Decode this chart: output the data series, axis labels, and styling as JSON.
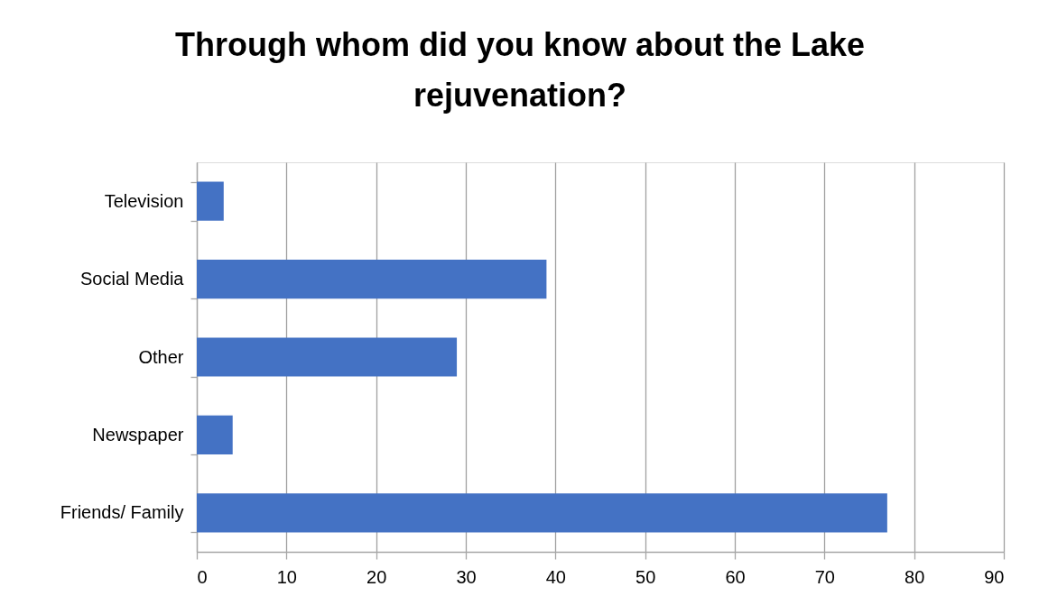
{
  "chart_data": {
    "type": "bar",
    "orientation": "horizontal",
    "title": "Through whom did you know about the Lake rejuvenation?",
    "categories": [
      "Television",
      "Social Media",
      "Other",
      "Newspaper",
      "Friends/ Family"
    ],
    "values": [
      3,
      39,
      29,
      4,
      77
    ],
    "color": "#4472c4",
    "xlim": [
      0,
      90
    ],
    "xticks": [
      0,
      10,
      20,
      30,
      40,
      50,
      60,
      70,
      80,
      90
    ],
    "grid": "x"
  }
}
